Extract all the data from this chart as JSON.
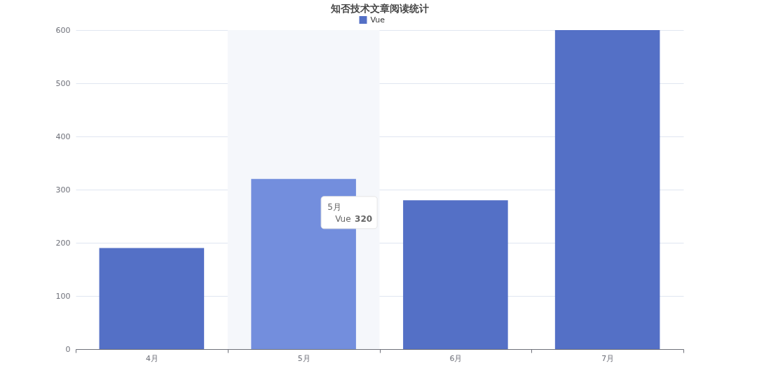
{
  "chart_data": {
    "type": "bar",
    "title": "知否技术文章阅读统计",
    "categories": [
      "4月",
      "5月",
      "6月",
      "7月"
    ],
    "series": [
      {
        "name": "Vue",
        "color": "#5470c6",
        "colors": [
          "#5470c6",
          "#738edd",
          "#5470c6",
          "#5470c6"
        ],
        "values": [
          190,
          320,
          280,
          600
        ]
      }
    ],
    "ylim": [
      0,
      600
    ],
    "yticks": [
      0,
      100,
      200,
      300,
      400,
      500,
      600
    ],
    "grid": "y",
    "legend": "top",
    "bands": [
      {
        "axis": "x",
        "from": "5月",
        "to": "5月",
        "color": "#f5f7fb"
      }
    ],
    "annotations": [
      "320"
    ]
  }
}
